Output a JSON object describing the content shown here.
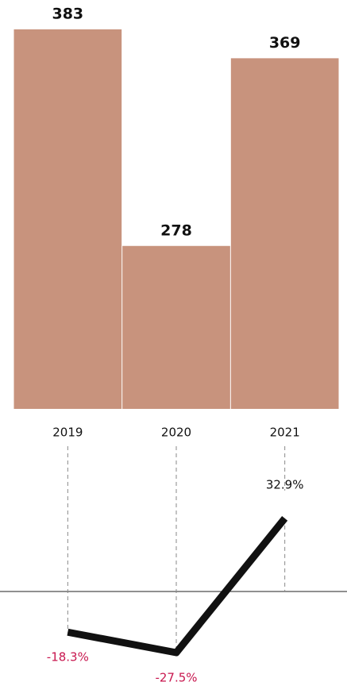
{
  "chart_data": [
    {
      "type": "bar",
      "categories": [
        "2019",
        "2020",
        "2021"
      ],
      "values": [
        383,
        278,
        369
      ],
      "color": "#c8937d",
      "ylim": [
        199,
        383
      ],
      "yticks": []
    },
    {
      "type": "line",
      "values": [
        -18.3,
        -27.5,
        32.9
      ],
      "value_labels": [
        "-18.3%",
        "-27.5%",
        "32.9%"
      ],
      "color": "#111111",
      "negative_color": "#c8174f",
      "ylim": [
        -40,
        45
      ],
      "yticks": []
    }
  ]
}
